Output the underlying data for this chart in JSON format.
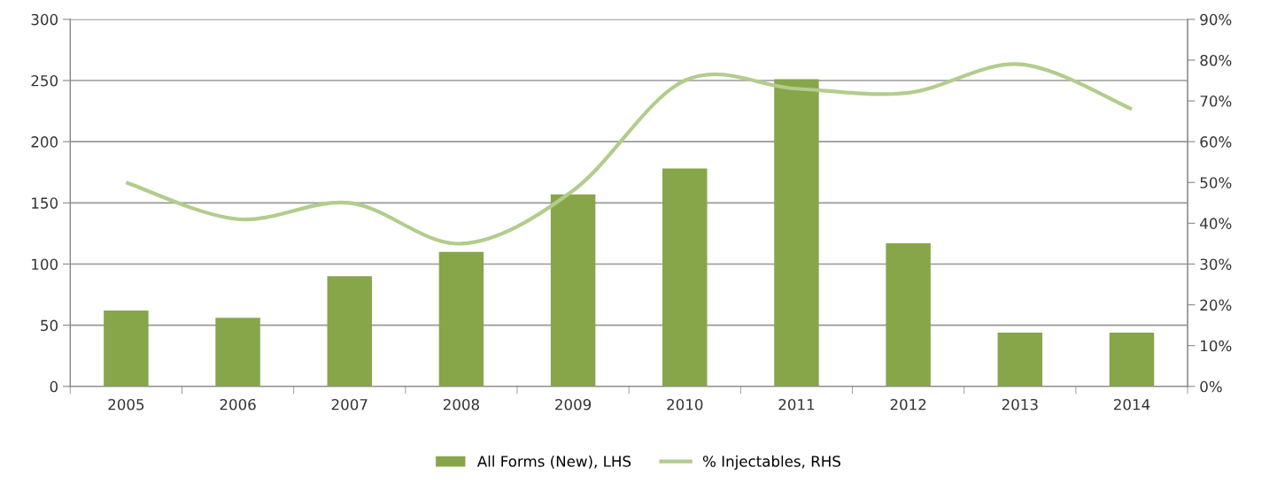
{
  "chart_data": {
    "type": "bar",
    "categories": [
      "2005",
      "2006",
      "2007",
      "2008",
      "2009",
      "2010",
      "2011",
      "2012",
      "2013",
      "2014"
    ],
    "series": [
      {
        "name": "All Forms (New), LHS",
        "color": "#86a649",
        "values": [
          62,
          56,
          90,
          110,
          157,
          178,
          251,
          117,
          44,
          44
        ]
      },
      {
        "name": "% Injectables, RHS",
        "type": "line",
        "axis": "y2",
        "color": "#b3cc8c",
        "values": [
          50,
          41,
          45,
          35,
          48,
          75,
          73,
          72,
          79,
          68
        ]
      }
    ],
    "ylim": [
      0,
      300
    ],
    "yticks": [
      0,
      50,
      100,
      150,
      200,
      250,
      300
    ],
    "y2lim": [
      0,
      90
    ],
    "y2ticks": [
      {
        "value": 0,
        "label": "0%"
      },
      {
        "value": 10,
        "label": "10%"
      },
      {
        "value": 20,
        "label": "20%"
      },
      {
        "value": 30,
        "label": "30%"
      },
      {
        "value": 40,
        "label": "40%"
      },
      {
        "value": 50,
        "label": "50%"
      },
      {
        "value": 60,
        "label": "60%"
      },
      {
        "value": 70,
        "label": "70%"
      },
      {
        "value": 80,
        "label": "80%"
      },
      {
        "value": 90,
        "label": "90%"
      }
    ],
    "grid": "y",
    "legend": "bottom",
    "marker": "none",
    "line_style": "solid"
  }
}
